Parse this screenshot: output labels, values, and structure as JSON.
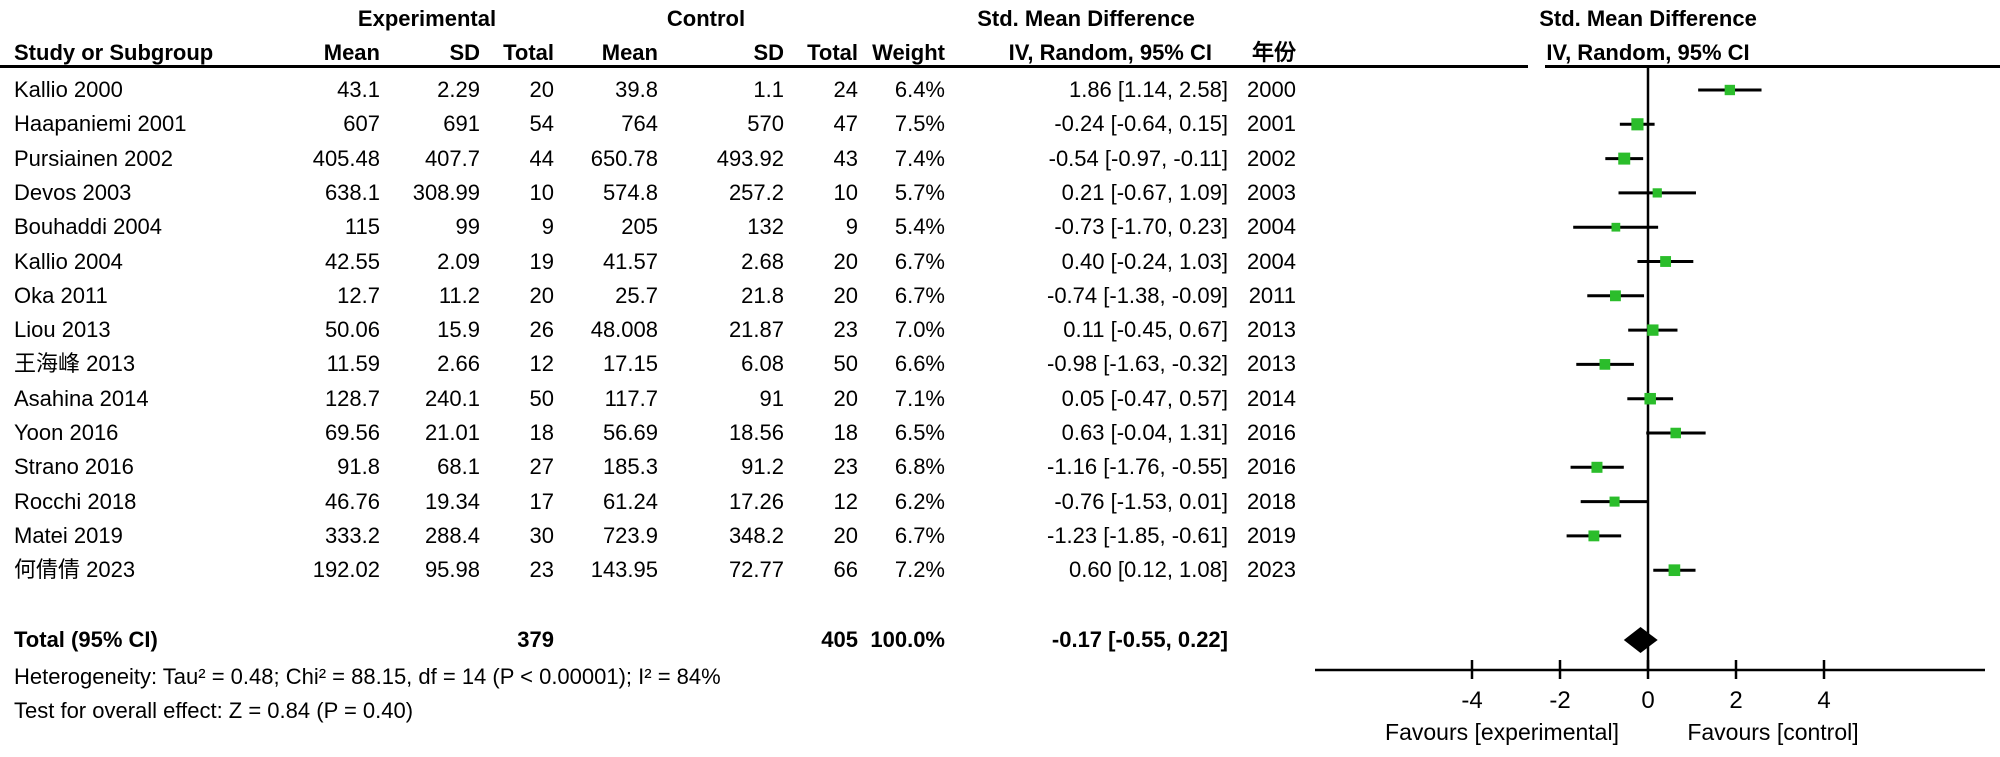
{
  "header": {
    "experimental": "Experimental",
    "control": "Control",
    "smd_left": "Std. Mean Difference",
    "smd_right": "Std. Mean Difference",
    "study": "Study or Subgroup",
    "mean_e": "Mean",
    "sd_e": "SD",
    "total_e": "Total",
    "mean_c": "Mean",
    "sd_c": "SD",
    "total_c": "Total",
    "weight": "Weight",
    "method_left": "IV, Random, 95% CI",
    "year": "年份",
    "method_right": "IV, Random, 95% CI"
  },
  "chart_data": {
    "type": "forest",
    "effect_measure": "Std. Mean Difference",
    "model": "IV, Random, 95% CI",
    "marker_color": "#2bbd2b",
    "axis": {
      "ticks": [
        -4,
        -2,
        0,
        2,
        4
      ],
      "xmin": -7.6,
      "xmax": 7.6,
      "favours_left": "Favours [experimental]",
      "favours_right": "Favours [control]"
    },
    "studies": [
      {
        "name": "Kallio 2000",
        "mean_e": "43.1",
        "sd_e": "2.29",
        "n_e": "20",
        "mean_c": "39.8",
        "sd_c": "1.1",
        "n_c": "24",
        "weight": "6.4%",
        "weight_pct": 6.4,
        "ci_text": "1.86 [1.14, 2.58]",
        "year": "2000",
        "est": 1.86,
        "lo": 1.14,
        "hi": 2.58
      },
      {
        "name": "Haapaniemi 2001",
        "mean_e": "607",
        "sd_e": "691",
        "n_e": "54",
        "mean_c": "764",
        "sd_c": "570",
        "n_c": "47",
        "weight": "7.5%",
        "weight_pct": 7.5,
        "ci_text": "-0.24 [-0.64, 0.15]",
        "year": "2001",
        "est": -0.24,
        "lo": -0.64,
        "hi": 0.15
      },
      {
        "name": "Pursiainen 2002",
        "mean_e": "405.48",
        "sd_e": "407.7",
        "n_e": "44",
        "mean_c": "650.78",
        "sd_c": "493.92",
        "n_c": "43",
        "weight": "7.4%",
        "weight_pct": 7.4,
        "ci_text": "-0.54 [-0.97, -0.11]",
        "year": "2002",
        "est": -0.54,
        "lo": -0.97,
        "hi": -0.11
      },
      {
        "name": "Devos 2003",
        "mean_e": "638.1",
        "sd_e": "308.99",
        "n_e": "10",
        "mean_c": "574.8",
        "sd_c": "257.2",
        "n_c": "10",
        "weight": "5.7%",
        "weight_pct": 5.7,
        "ci_text": "0.21 [-0.67, 1.09]",
        "year": "2003",
        "est": 0.21,
        "lo": -0.67,
        "hi": 1.09
      },
      {
        "name": "Bouhaddi 2004",
        "mean_e": "115",
        "sd_e": "99",
        "n_e": "9",
        "mean_c": "205",
        "sd_c": "132",
        "n_c": "9",
        "weight": "5.4%",
        "weight_pct": 5.4,
        "ci_text": "-0.73 [-1.70, 0.23]",
        "year": "2004",
        "est": -0.73,
        "lo": -1.7,
        "hi": 0.23
      },
      {
        "name": "Kallio 2004",
        "mean_e": "42.55",
        "sd_e": "2.09",
        "n_e": "19",
        "mean_c": "41.57",
        "sd_c": "2.68",
        "n_c": "20",
        "weight": "6.7%",
        "weight_pct": 6.7,
        "ci_text": "0.40 [-0.24, 1.03]",
        "year": "2004",
        "est": 0.4,
        "lo": -0.24,
        "hi": 1.03
      },
      {
        "name": "Oka 2011",
        "mean_e": "12.7",
        "sd_e": "11.2",
        "n_e": "20",
        "mean_c": "25.7",
        "sd_c": "21.8",
        "n_c": "20",
        "weight": "6.7%",
        "weight_pct": 6.7,
        "ci_text": "-0.74 [-1.38, -0.09]",
        "year": "2011",
        "est": -0.74,
        "lo": -1.38,
        "hi": -0.09
      },
      {
        "name": "Liou 2013",
        "mean_e": "50.06",
        "sd_e": "15.9",
        "n_e": "26",
        "mean_c": "48.008",
        "sd_c": "21.87",
        "n_c": "23",
        "weight": "7.0%",
        "weight_pct": 7.0,
        "ci_text": "0.11 [-0.45, 0.67]",
        "year": "2013",
        "est": 0.11,
        "lo": -0.45,
        "hi": 0.67
      },
      {
        "name": "王海峰 2013",
        "mean_e": "11.59",
        "sd_e": "2.66",
        "n_e": "12",
        "mean_c": "17.15",
        "sd_c": "6.08",
        "n_c": "50",
        "weight": "6.6%",
        "weight_pct": 6.6,
        "ci_text": "-0.98 [-1.63, -0.32]",
        "year": "2013",
        "est": -0.98,
        "lo": -1.63,
        "hi": -0.32
      },
      {
        "name": "Asahina 2014",
        "mean_e": "128.7",
        "sd_e": "240.1",
        "n_e": "50",
        "mean_c": "117.7",
        "sd_c": "91",
        "n_c": "20",
        "weight": "7.1%",
        "weight_pct": 7.1,
        "ci_text": "0.05 [-0.47, 0.57]",
        "year": "2014",
        "est": 0.05,
        "lo": -0.47,
        "hi": 0.57
      },
      {
        "name": "Yoon 2016",
        "mean_e": "69.56",
        "sd_e": "21.01",
        "n_e": "18",
        "mean_c": "56.69",
        "sd_c": "18.56",
        "n_c": "18",
        "weight": "6.5%",
        "weight_pct": 6.5,
        "ci_text": "0.63 [-0.04, 1.31]",
        "year": "2016",
        "est": 0.63,
        "lo": -0.04,
        "hi": 1.31
      },
      {
        "name": "Strano 2016",
        "mean_e": "91.8",
        "sd_e": "68.1",
        "n_e": "27",
        "mean_c": "185.3",
        "sd_c": "91.2",
        "n_c": "23",
        "weight": "6.8%",
        "weight_pct": 6.8,
        "ci_text": "-1.16 [-1.76, -0.55]",
        "year": "2016",
        "est": -1.16,
        "lo": -1.76,
        "hi": -0.55
      },
      {
        "name": "Rocchi 2018",
        "mean_e": "46.76",
        "sd_e": "19.34",
        "n_e": "17",
        "mean_c": "61.24",
        "sd_c": "17.26",
        "n_c": "12",
        "weight": "6.2%",
        "weight_pct": 6.2,
        "ci_text": "-0.76 [-1.53, 0.01]",
        "year": "2018",
        "est": -0.76,
        "lo": -1.53,
        "hi": 0.01
      },
      {
        "name": "Matei 2019",
        "mean_e": "333.2",
        "sd_e": "288.4",
        "n_e": "30",
        "mean_c": "723.9",
        "sd_c": "348.2",
        "n_c": "20",
        "weight": "6.7%",
        "weight_pct": 6.7,
        "ci_text": "-1.23 [-1.85, -0.61]",
        "year": "2019",
        "est": -1.23,
        "lo": -1.85,
        "hi": -0.61
      },
      {
        "name": "何倩倩 2023",
        "mean_e": "192.02",
        "sd_e": "95.98",
        "n_e": "23",
        "mean_c": "143.95",
        "sd_c": "72.77",
        "n_c": "66",
        "weight": "7.2%",
        "weight_pct": 7.2,
        "ci_text": "0.60 [0.12, 1.08]",
        "year": "2023",
        "est": 0.6,
        "lo": 0.12,
        "hi": 1.08
      }
    ],
    "total": {
      "label": "Total (95% CI)",
      "n_e": "379",
      "n_c": "405",
      "weight": "100.0%",
      "ci_text": "-0.17 [-0.55, 0.22]",
      "est": -0.17,
      "lo": -0.55,
      "hi": 0.22
    },
    "heterogeneity": "Heterogeneity: Tau² = 0.48; Chi² = 88.15, df = 14 (P < 0.00001); I² = 84%",
    "overall_effect": "Test for overall effect: Z = 0.84 (P = 0.40)"
  }
}
